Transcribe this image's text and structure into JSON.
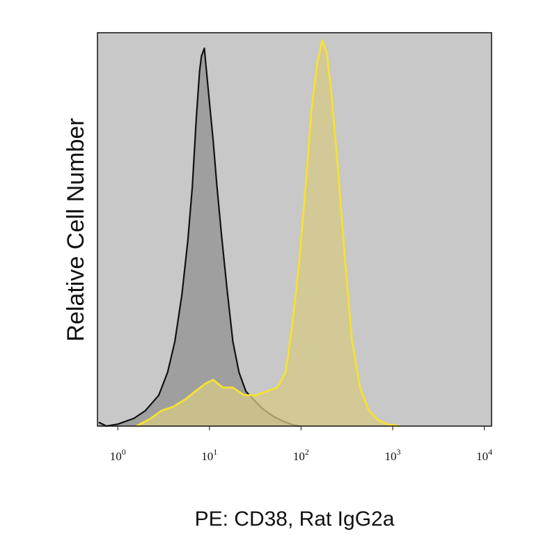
{
  "chart_data": {
    "type": "area",
    "title": "",
    "xlabel": "PE: CD38, Rat IgG2a",
    "ylabel": "Relative Cell Number",
    "x_scale": "log",
    "xlim": [
      0.6,
      12000
    ],
    "ylim": [
      0,
      1.02
    ],
    "grid": false,
    "legend": "none",
    "plot_background": "#c8c8c8",
    "x_ticks": [
      {
        "value": 1,
        "base": "10",
        "exp": "0"
      },
      {
        "value": 10,
        "base": "10",
        "exp": "1"
      },
      {
        "value": 100,
        "base": "10",
        "exp": "2"
      },
      {
        "value": 1000,
        "base": "10",
        "exp": "3"
      },
      {
        "value": 10000,
        "base": "10",
        "exp": "4"
      }
    ],
    "series": [
      {
        "fill": "#9a9a9a",
        "stroke": "#111111",
        "points": [
          [
            0.62,
            0.01
          ],
          [
            0.75,
            0.0
          ],
          [
            1.0,
            0.005
          ],
          [
            1.5,
            0.02
          ],
          [
            2.0,
            0.04
          ],
          [
            2.8,
            0.08
          ],
          [
            3.5,
            0.14
          ],
          [
            4.2,
            0.22
          ],
          [
            5.0,
            0.34
          ],
          [
            5.8,
            0.48
          ],
          [
            6.5,
            0.62
          ],
          [
            7.2,
            0.8
          ],
          [
            7.8,
            0.92
          ],
          [
            8.2,
            0.96
          ],
          [
            8.8,
            0.98
          ],
          [
            9.3,
            0.92
          ],
          [
            10.0,
            0.84
          ],
          [
            11.0,
            0.74
          ],
          [
            12.0,
            0.63
          ],
          [
            13.5,
            0.5
          ],
          [
            15.5,
            0.36
          ],
          [
            18.0,
            0.22
          ],
          [
            21.0,
            0.14
          ],
          [
            25.0,
            0.09
          ],
          [
            30.0,
            0.07
          ],
          [
            38.0,
            0.045
          ],
          [
            50.0,
            0.025
          ],
          [
            65.0,
            0.012
          ],
          [
            80.0,
            0.004
          ],
          [
            95.0,
            0.0
          ]
        ]
      },
      {
        "fill": "#d7c986",
        "stroke": "#f5e133",
        "points": [
          [
            1.6,
            0.0
          ],
          [
            2.3,
            0.02
          ],
          [
            3.0,
            0.04
          ],
          [
            4.0,
            0.05
          ],
          [
            5.5,
            0.07
          ],
          [
            7.0,
            0.09
          ],
          [
            9.0,
            0.11
          ],
          [
            11.0,
            0.12
          ],
          [
            14.0,
            0.1
          ],
          [
            18.0,
            0.1
          ],
          [
            24.0,
            0.08
          ],
          [
            32.0,
            0.08
          ],
          [
            42.0,
            0.09
          ],
          [
            55.0,
            0.1
          ],
          [
            68.0,
            0.14
          ],
          [
            80.0,
            0.26
          ],
          [
            95.0,
            0.42
          ],
          [
            112.0,
            0.62
          ],
          [
            130.0,
            0.82
          ],
          [
            150.0,
            0.94
          ],
          [
            170.0,
            1.0
          ],
          [
            190.0,
            0.97
          ],
          [
            215.0,
            0.86
          ],
          [
            250.0,
            0.68
          ],
          [
            300.0,
            0.44
          ],
          [
            360.0,
            0.22
          ],
          [
            440.0,
            0.1
          ],
          [
            550.0,
            0.04
          ],
          [
            700.0,
            0.015
          ],
          [
            900.0,
            0.004
          ],
          [
            1200.0,
            0.0
          ]
        ]
      }
    ]
  }
}
